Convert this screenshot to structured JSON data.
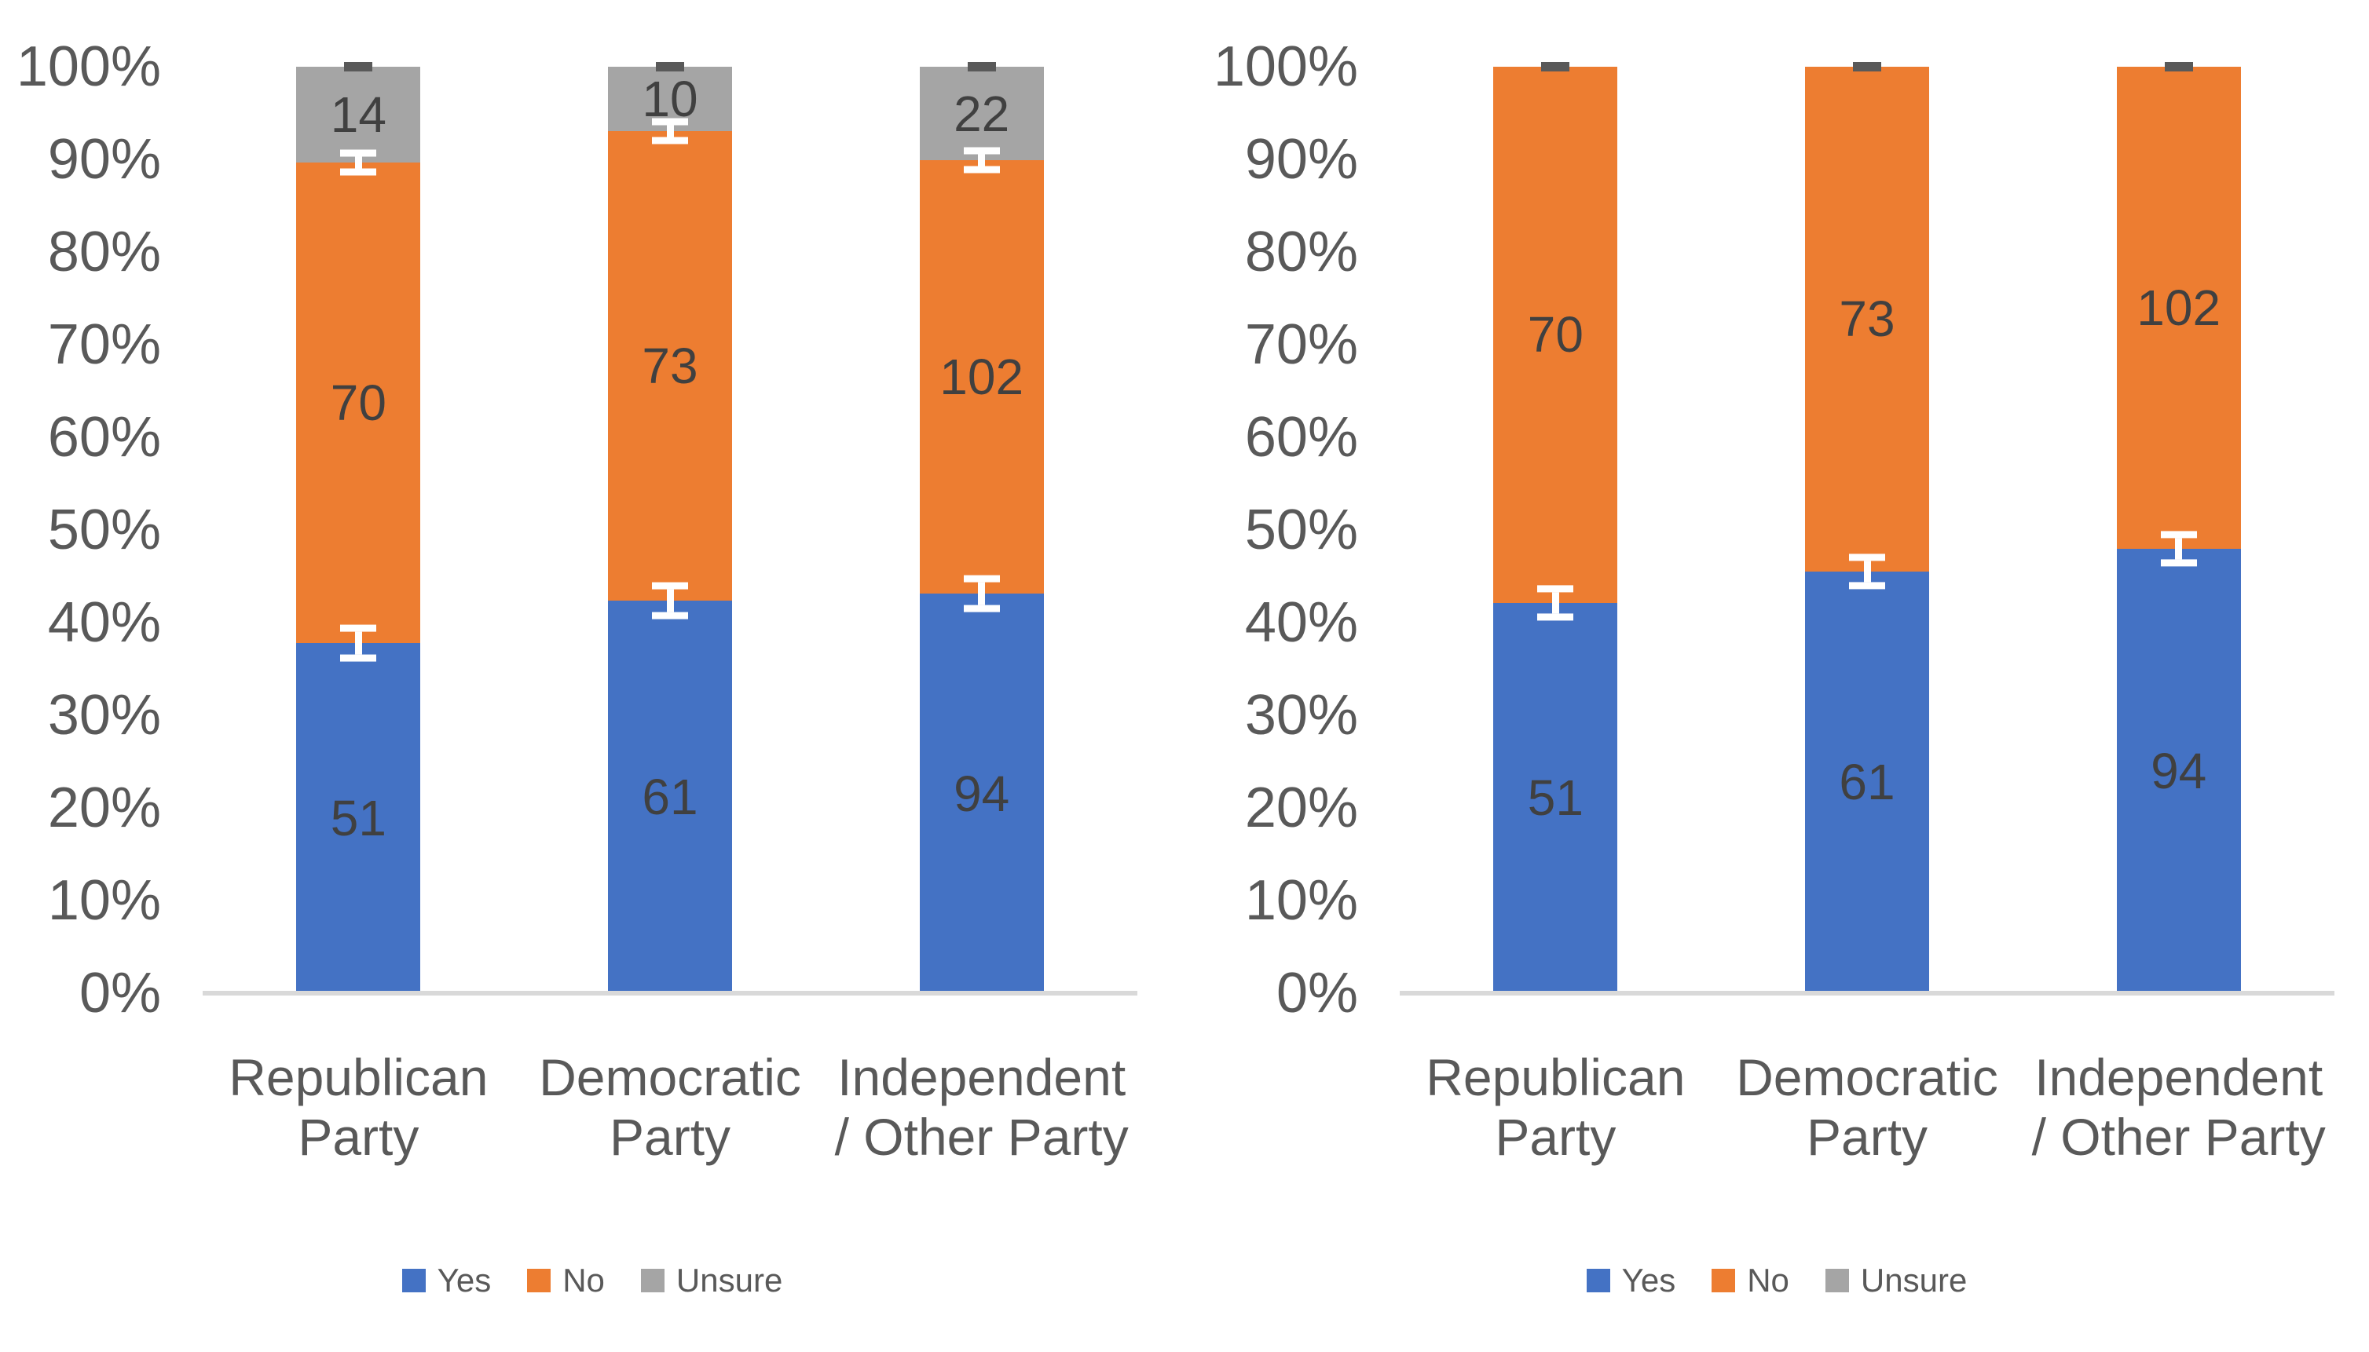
{
  "page": {
    "background": "#FFFFFF"
  },
  "colors": {
    "yes": "#4472C4",
    "no": "#ED7D31",
    "unsure": "#A5A5A5",
    "axis_line": "#D9D9D9",
    "tick_text": "#595959",
    "category_text": "#595959",
    "data_label_text": "#404040",
    "error_bar_white": "#FFFFFF",
    "error_bar_dark": "#595959",
    "legend_text": "#595959"
  },
  "y_axis_ticks": [
    "100%",
    "90%",
    "80%",
    "70%",
    "60%",
    "50%",
    "40%",
    "30%",
    "20%",
    "10%",
    "0%"
  ],
  "legend_items": [
    {
      "label": "Yes",
      "color": "#4472C4"
    },
    {
      "label": "No",
      "color": "#ED7D31"
    },
    {
      "label": "Unsure",
      "color": "#A5A5A5"
    }
  ],
  "chart_data": [
    {
      "id": "left-chart",
      "type": "bar",
      "stacked": "percent",
      "title": "",
      "xlabel": "",
      "ylabel": "",
      "ylim": [
        0,
        100
      ],
      "ytick_step": 10,
      "grid": false,
      "legend_position": "bottom",
      "categories": [
        "Republican Party",
        "Democratic Party",
        "Independent / Other Party"
      ],
      "category_label_lines": [
        [
          "Republican",
          "Party"
        ],
        [
          "Democratic",
          "Party"
        ],
        [
          "Independent",
          "/ Other Party"
        ]
      ],
      "series": [
        {
          "name": "Yes",
          "color": "#4472C4",
          "values": [
            51,
            61,
            94
          ]
        },
        {
          "name": "No",
          "color": "#ED7D31",
          "values": [
            70,
            73,
            102
          ]
        },
        {
          "name": "Unsure",
          "color": "#A5A5A5",
          "values": [
            14,
            10,
            22
          ]
        }
      ],
      "data_labels": "raw counts centered in each segment",
      "error_bars": [
        {
          "boundary_after": "Yes",
          "style": "white",
          "half_pct": 2.0
        },
        {
          "boundary_after": "No",
          "style": "white",
          "half_pct": 1.4
        },
        {
          "boundary_after": "Unsure",
          "style": "dark-cap",
          "half_pct": 0
        }
      ]
    },
    {
      "id": "right-chart",
      "type": "bar",
      "stacked": "percent",
      "title": "",
      "xlabel": "",
      "ylabel": "",
      "ylim": [
        0,
        100
      ],
      "ytick_step": 10,
      "grid": false,
      "legend_position": "bottom",
      "categories": [
        "Republican Party",
        "Democratic Party",
        "Independent / Other Party"
      ],
      "category_label_lines": [
        [
          "Republican",
          "Party"
        ],
        [
          "Democratic",
          "Party"
        ],
        [
          "Independent",
          "/ Other Party"
        ]
      ],
      "series": [
        {
          "name": "Yes",
          "color": "#4472C4",
          "values": [
            51,
            61,
            94
          ]
        },
        {
          "name": "No",
          "color": "#ED7D31",
          "values": [
            70,
            73,
            102
          ]
        }
      ],
      "data_labels": "raw counts centered in each segment",
      "error_bars": [
        {
          "boundary_after": "Yes",
          "style": "white",
          "half_pct": 1.9
        },
        {
          "boundary_after": "No",
          "style": "dark-cap",
          "half_pct": 0
        }
      ]
    }
  ]
}
